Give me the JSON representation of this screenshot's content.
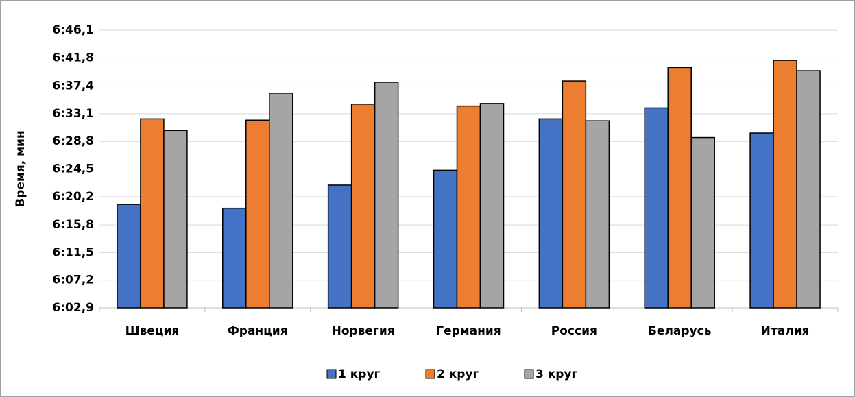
{
  "chart_data": {
    "type": "bar",
    "y_label": "Время, мин",
    "categories": [
      "Швеция",
      "Франция",
      "Норвегия",
      "Германия",
      "Россия",
      "Беларусь",
      "Италия"
    ],
    "series": [
      {
        "name": "1 круг",
        "color": "#4472c4",
        "values": [
          379.0,
          378.4,
          382.0,
          384.3,
          392.3,
          394.0,
          390.1
        ]
      },
      {
        "name": "2 круг",
        "color": "#ed7d31",
        "values": [
          392.3,
          392.1,
          394.6,
          394.3,
          398.2,
          400.3,
          401.4
        ]
      },
      {
        "name": "3 круг",
        "color": "#a5a5a5",
        "values": [
          390.5,
          396.3,
          398.0,
          394.7,
          392.0,
          389.4,
          399.8
        ]
      }
    ],
    "ylim": [
      362.9,
      406.1
    ],
    "yticks": [
      {
        "value": 362.9,
        "label": "6:02,9"
      },
      {
        "value": 367.2,
        "label": "6:07,2"
      },
      {
        "value": 371.5,
        "label": "6:11,5"
      },
      {
        "value": 375.8,
        "label": "6:15,8"
      },
      {
        "value": 380.2,
        "label": "6:20,2"
      },
      {
        "value": 384.5,
        "label": "6:24,5"
      },
      {
        "value": 388.8,
        "label": "6:28,8"
      },
      {
        "value": 393.1,
        "label": "6:33,1"
      },
      {
        "value": 397.4,
        "label": "6:37,4"
      },
      {
        "value": 401.8,
        "label": "6:41,8"
      },
      {
        "value": 406.1,
        "label": "6:46,1"
      }
    ],
    "grid": true,
    "legend": "bottom"
  }
}
